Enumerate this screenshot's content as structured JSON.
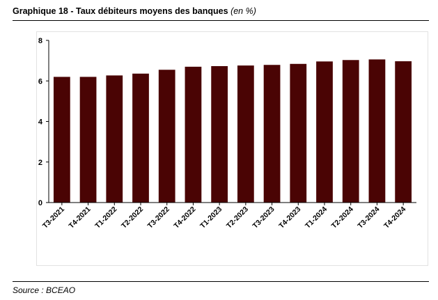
{
  "header": {
    "title_main": "Graphique 18 - Taux débiteurs moyens des banques",
    "title_unit": "(en %)"
  },
  "source": "Source : BCEAO",
  "chart_data": {
    "type": "bar",
    "categories": [
      "T3-2021",
      "T4-2021",
      "T1-2022",
      "T2-2022",
      "T3-2022",
      "T4-2022",
      "T1-2023",
      "T2-2023",
      "T3-2023",
      "T4-2023",
      "T1-2024",
      "T2-2024",
      "T3-2024",
      "T4-2024"
    ],
    "values": [
      6.2,
      6.2,
      6.27,
      6.36,
      6.55,
      6.7,
      6.73,
      6.76,
      6.79,
      6.84,
      6.96,
      7.03,
      7.06,
      6.97
    ],
    "ylim": [
      0,
      8
    ],
    "yticks": [
      0,
      2,
      4,
      6,
      8
    ],
    "bar_color": "#4a0404",
    "grid": false,
    "xlabel": "",
    "ylabel": ""
  }
}
